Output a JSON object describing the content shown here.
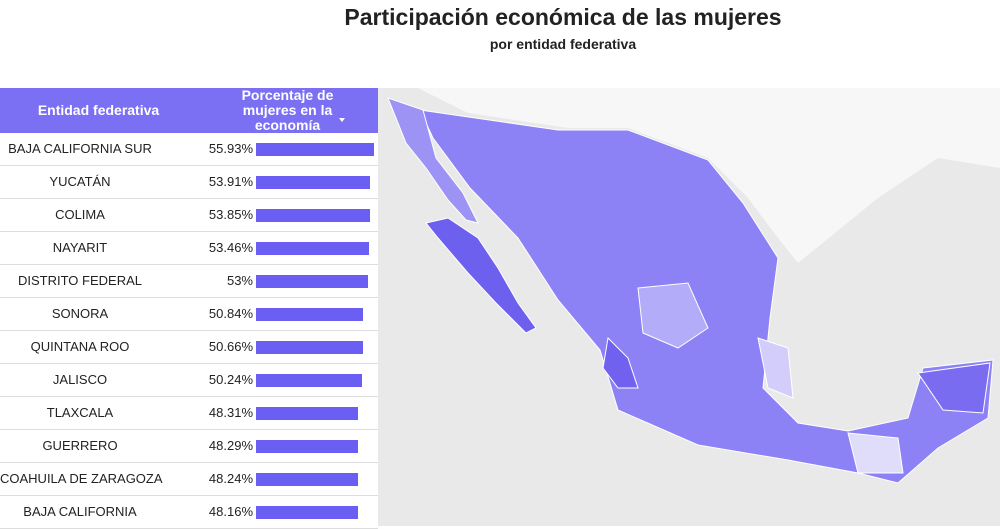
{
  "chart_data": {
    "type": "bar",
    "title": "Participación económica de las mujeres",
    "subtitle": "por entidad federativa",
    "column_headers": [
      "Entidad federativa",
      "Porcentaje de mujeres en la economía"
    ],
    "categories": [
      "BAJA CALIFORNIA SUR",
      "YUCATÁN",
      "COLIMA",
      "NAYARIT",
      "DISTRITO FEDERAL",
      "SONORA",
      "QUINTANA ROO",
      "JALISCO",
      "TLAXCALA",
      "GUERRERO",
      "COAHUILA DE ZARAGOZA",
      "BAJA CALIFORNIA"
    ],
    "values": [
      55.93,
      53.91,
      53.85,
      53.46,
      53,
      50.84,
      50.66,
      50.24,
      48.31,
      48.29,
      48.24,
      48.16
    ],
    "value_labels": [
      "55.93%",
      "53.91%",
      "53.85%",
      "53.46%",
      "53%",
      "50.84%",
      "50.66%",
      "50.24%",
      "48.31%",
      "48.29%",
      "48.24%",
      "48.16%"
    ],
    "color": "#6b5ef2"
  }
}
